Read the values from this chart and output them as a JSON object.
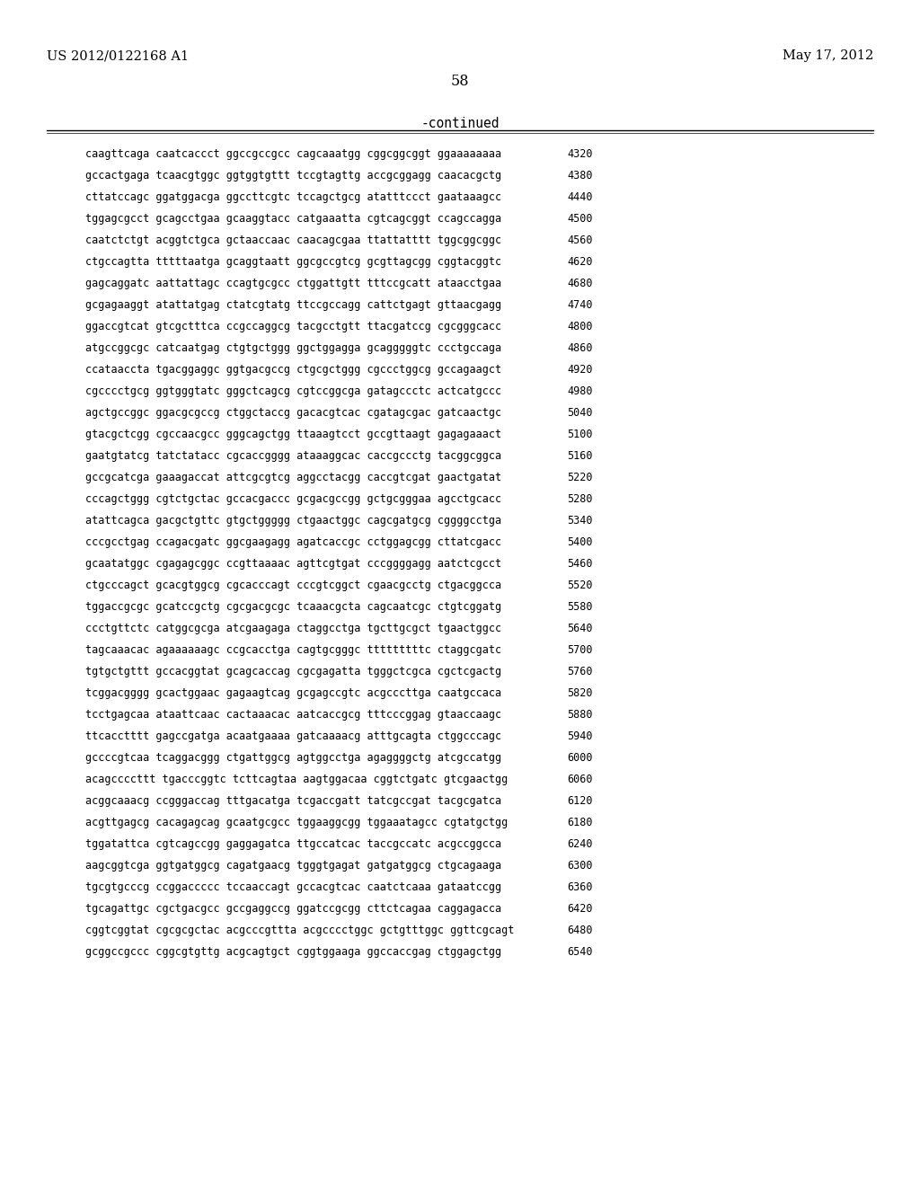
{
  "header_left": "US 2012/0122168 A1",
  "header_right": "May 17, 2012",
  "page_number": "58",
  "continued_label": "-continued",
  "background_color": "#ffffff",
  "text_color": "#000000",
  "font_size_header": 10.5,
  "font_size_page": 11.5,
  "font_size_continued": 10.5,
  "font_size_sequence": 8.5,
  "sequence_lines": [
    [
      "caagttcaga caatcaccct ggccgccgcc cagcaaatgg cggcggcggt ggaaaaaaaa",
      "4320"
    ],
    [
      "gccactgaga tcaacgtggc ggtggtgttt tccgtagttg accgcggagg caacacgctg",
      "4380"
    ],
    [
      "cttatccagc ggatggacga ggccttcgtc tccagctgcg atatttccct gaataaagcc",
      "4440"
    ],
    [
      "tggagcgcct gcagcctgaa gcaaggtacc catgaaatta cgtcagcggt ccagccagga",
      "4500"
    ],
    [
      "caatctctgt acggtctgca gctaaccaac caacagcgaa ttattatttt tggcggcggc",
      "4560"
    ],
    [
      "ctgccagtta tttttaatga gcaggtaatt ggcgccgtcg gcgttagcgg cggtacggtc",
      "4620"
    ],
    [
      "gagcaggatc aattattagc ccagtgcgcc ctggattgtt tttccgcatt ataacctgaa",
      "4680"
    ],
    [
      "gcgagaaggt atattatgag ctatcgtatg ttccgccagg cattctgagt gttaacgagg",
      "4740"
    ],
    [
      "ggaccgtcat gtcgctttca ccgccaggcg tacgcctgtt ttacgatccg cgcgggcacc",
      "4800"
    ],
    [
      "atgccggcgc catcaatgag ctgtgctggg ggctggagga gcagggggtc ccctgccaga",
      "4860"
    ],
    [
      "ccataaccta tgacggaggc ggtgacgccg ctgcgctggg cgccctggcg gccagaagct",
      "4920"
    ],
    [
      "cgcccctgcg ggtgggtatc gggctcagcg cgtccggcga gatagccctc actcatgccc",
      "4980"
    ],
    [
      "agctgccggc ggacgcgccg ctggctaccg gacacgtcac cgatagcgac gatcaactgc",
      "5040"
    ],
    [
      "gtacgctcgg cgccaacgcc gggcagctgg ttaaagtcct gccgttaagt gagagaaact",
      "5100"
    ],
    [
      "gaatgtatcg tatctatacc cgcaccgggg ataaaggcac caccgccctg tacggcggca",
      "5160"
    ],
    [
      "gccgcatcga gaaagaccat attcgcgtcg aggcctacgg caccgtcgat gaactgatat",
      "5220"
    ],
    [
      "cccagctggg cgtctgctac gccacgaccc gcgacgccgg gctgcgggaa agcctgcacc",
      "5280"
    ],
    [
      "atattcagca gacgctgttc gtgctggggg ctgaactggc cagcgatgcg cggggcctga",
      "5340"
    ],
    [
      "cccgcctgag ccagacgatc ggcgaagagg agatcaccgc cctggagcgg cttatcgacc",
      "5400"
    ],
    [
      "gcaatatggc cgagagcggc ccgttaaaac agttcgtgat cccggggagg aatctcgcct",
      "5460"
    ],
    [
      "ctgcccagct gcacgtggcg cgcacccagt cccgtcggct cgaacgcctg ctgacggcca",
      "5520"
    ],
    [
      "tggaccgcgc gcatccgctg cgcgacgcgc tcaaacgcta cagcaatcgc ctgtcggatg",
      "5580"
    ],
    [
      "ccctgttctc catggcgcga atcgaagaga ctaggcctga tgcttgcgct tgaactggcc",
      "5640"
    ],
    [
      "tagcaaacac agaaaaaagc ccgcacctga cagtgcgggc tttttttttc ctaggcgatc",
      "5700"
    ],
    [
      "tgtgctgttt gccacggtat gcagcaccag cgcgagatta tgggctcgca cgctcgactg",
      "5760"
    ],
    [
      "tcggacgggg gcactggaac gagaagtcag gcgagccgtc acgcccttga caatgccaca",
      "5820"
    ],
    [
      "tcctgagcaa ataattcaac cactaaacac aatcaccgcg tttcccggag gtaaccaagc",
      "5880"
    ],
    [
      "ttcacctttt gagccgatga acaatgaaaa gatcaaaacg atttgcagta ctggcccagc",
      "5940"
    ],
    [
      "gccccgtcaa tcaggacggg ctgattggcg agtggcctga agaggggctg atcgccatgg",
      "6000"
    ],
    [
      "acagccccttt tgacccggtc tcttcagtaa aagtggacaa cggtctgatc gtcgaactgg",
      "6060"
    ],
    [
      "acggcaaacg ccgggaccag tttgacatga tcgaccgatt tatcgccgat tacgcgatca",
      "6120"
    ],
    [
      "acgttgagcg cacagagcag gcaatgcgcc tggaaggcgg tggaaatagcc cgtatgctgg",
      "6180"
    ],
    [
      "tggatattca cgtcagccgg gaggagatca ttgccatcac taccgccatc acgccggcca",
      "6240"
    ],
    [
      "aagcggtcga ggtgatggcg cagatgaacg tgggtgagat gatgatggcg ctgcagaaga",
      "6300"
    ],
    [
      "tgcgtgcccg ccggaccccc tccaaccagt gccacgtcac caatctcaaa gataatccgg",
      "6360"
    ],
    [
      "tgcagattgc cgctgacgcc gccgaggccg ggatccgcgg cttctcagaa caggagacca",
      "6420"
    ],
    [
      "cggtcggtat cgcgcgctac acgcccgttta acgcccctggc gctgtttggc ggttcgcagt",
      "6480"
    ],
    [
      "gcggccgccc cggcgtgttg acgcagtgct cggtggaaga ggccaccgag ctggagctgg",
      "6540"
    ]
  ]
}
